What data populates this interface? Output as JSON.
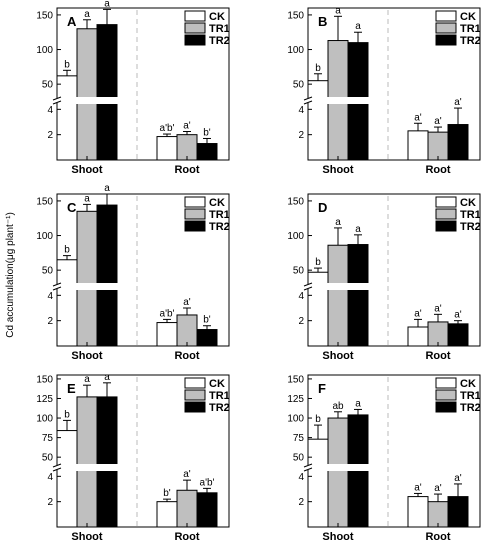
{
  "y_axis_label": "Cd accumulation(μg plant⁻¹)",
  "legend": [
    {
      "name": "CK",
      "color": "#ffffff"
    },
    {
      "name": "TR1",
      "color": "#bfbfbf"
    },
    {
      "name": "TR2",
      "color": "#000000"
    }
  ],
  "chart_data": [
    {
      "type": "bar",
      "panel": "A",
      "categories": [
        "Shoot",
        "Root"
      ],
      "upper_axis": {
        "ticks": [
          50,
          100,
          150
        ],
        "range": [
          30,
          160
        ]
      },
      "lower_axis": {
        "ticks": [
          0,
          2,
          4
        ],
        "range": [
          0,
          4.5
        ]
      },
      "series": [
        {
          "name": "CK",
          "values": [
            62,
            1.85
          ],
          "errors": [
            8,
            0.2
          ],
          "labels": [
            "b",
            "a'b'"
          ]
        },
        {
          "name": "TR1",
          "values": [
            130,
            2.0
          ],
          "errors": [
            13,
            0.25
          ],
          "labels": [
            "a",
            "a'"
          ]
        },
        {
          "name": "TR2",
          "values": [
            136,
            1.3
          ],
          "errors": [
            22,
            0.4
          ],
          "labels": [
            "a",
            "b'"
          ]
        }
      ]
    },
    {
      "type": "bar",
      "panel": "B",
      "categories": [
        "Shoot",
        "Root"
      ],
      "upper_axis": {
        "ticks": [
          50,
          100,
          150
        ],
        "range": [
          30,
          160
        ]
      },
      "lower_axis": {
        "ticks": [
          0,
          2,
          4
        ],
        "range": [
          0,
          4.5
        ]
      },
      "series": [
        {
          "name": "CK",
          "values": [
            55,
            2.3
          ],
          "errors": [
            10,
            0.6
          ],
          "labels": [
            "b",
            "a'"
          ]
        },
        {
          "name": "TR1",
          "values": [
            113,
            2.2
          ],
          "errors": [
            35,
            0.4
          ],
          "labels": [
            "a",
            "a'"
          ]
        },
        {
          "name": "TR2",
          "values": [
            110,
            2.8
          ],
          "errors": [
            15,
            1.3
          ],
          "labels": [
            "a",
            "a'"
          ]
        }
      ]
    },
    {
      "type": "bar",
      "panel": "C",
      "categories": [
        "Shoot",
        "Root"
      ],
      "upper_axis": {
        "ticks": [
          50,
          100,
          150
        ],
        "range": [
          30,
          160
        ]
      },
      "lower_axis": {
        "ticks": [
          0,
          2,
          4
        ],
        "range": [
          0,
          4.5
        ]
      },
      "series": [
        {
          "name": "CK",
          "values": [
            65,
            1.85
          ],
          "errors": [
            6,
            0.25
          ],
          "labels": [
            "b",
            "a'b'"
          ]
        },
        {
          "name": "TR1",
          "values": [
            135,
            2.45
          ],
          "errors": [
            10,
            0.55
          ],
          "labels": [
            "a",
            "a'"
          ]
        },
        {
          "name": "TR2",
          "values": [
            144,
            1.3
          ],
          "errors": [
            16,
            0.3
          ],
          "labels": [
            "a",
            "b'"
          ]
        }
      ]
    },
    {
      "type": "bar",
      "panel": "D",
      "categories": [
        "Shoot",
        "Root"
      ],
      "upper_axis": {
        "ticks": [
          50,
          100,
          150
        ],
        "range": [
          30,
          160
        ]
      },
      "lower_axis": {
        "ticks": [
          0,
          2,
          4
        ],
        "range": [
          0,
          4.5
        ]
      },
      "series": [
        {
          "name": "CK",
          "values": [
            47,
            1.5
          ],
          "errors": [
            6,
            0.6
          ],
          "labels": [
            "b",
            "a'"
          ]
        },
        {
          "name": "TR1",
          "values": [
            86,
            1.9
          ],
          "errors": [
            25,
            0.6
          ],
          "labels": [
            "a",
            "a'"
          ]
        },
        {
          "name": "TR2",
          "values": [
            87,
            1.75
          ],
          "errors": [
            14,
            0.25
          ],
          "labels": [
            "a",
            "a'"
          ]
        }
      ]
    },
    {
      "type": "bar",
      "panel": "E",
      "categories": [
        "Shoot",
        "Root"
      ],
      "upper_axis": {
        "ticks": [
          50,
          75,
          100,
          125,
          150
        ],
        "range": [
          40,
          155
        ]
      },
      "lower_axis": {
        "ticks": [
          0,
          2,
          4
        ],
        "range": [
          0,
          4.5
        ]
      },
      "series": [
        {
          "name": "CK",
          "values": [
            84,
            2.0
          ],
          "errors": [
            13,
            0.2
          ],
          "labels": [
            "b",
            "b'"
          ]
        },
        {
          "name": "TR1",
          "values": [
            127,
            2.9
          ],
          "errors": [
            15,
            0.8
          ],
          "labels": [
            "a",
            "a'"
          ]
        },
        {
          "name": "TR2",
          "values": [
            127,
            2.7
          ],
          "errors": [
            18,
            0.35
          ],
          "labels": [
            "a",
            "a'b'"
          ]
        }
      ]
    },
    {
      "type": "bar",
      "panel": "F",
      "categories": [
        "Shoot",
        "Root"
      ],
      "upper_axis": {
        "ticks": [
          50,
          75,
          100,
          125,
          150
        ],
        "range": [
          40,
          155
        ]
      },
      "lower_axis": {
        "ticks": [
          0,
          2,
          4
        ],
        "range": [
          0,
          4.5
        ]
      },
      "series": [
        {
          "name": "CK",
          "values": [
            73,
            2.4
          ],
          "errors": [
            18,
            0.25
          ],
          "labels": [
            "b",
            "a'"
          ]
        },
        {
          "name": "TR1",
          "values": [
            100,
            2.0
          ],
          "errors": [
            8,
            0.6
          ],
          "labels": [
            "ab",
            "a'"
          ]
        },
        {
          "name": "TR2",
          "values": [
            104,
            2.4
          ],
          "errors": [
            7,
            1.0
          ],
          "labels": [
            "a",
            "a'"
          ]
        }
      ]
    }
  ]
}
